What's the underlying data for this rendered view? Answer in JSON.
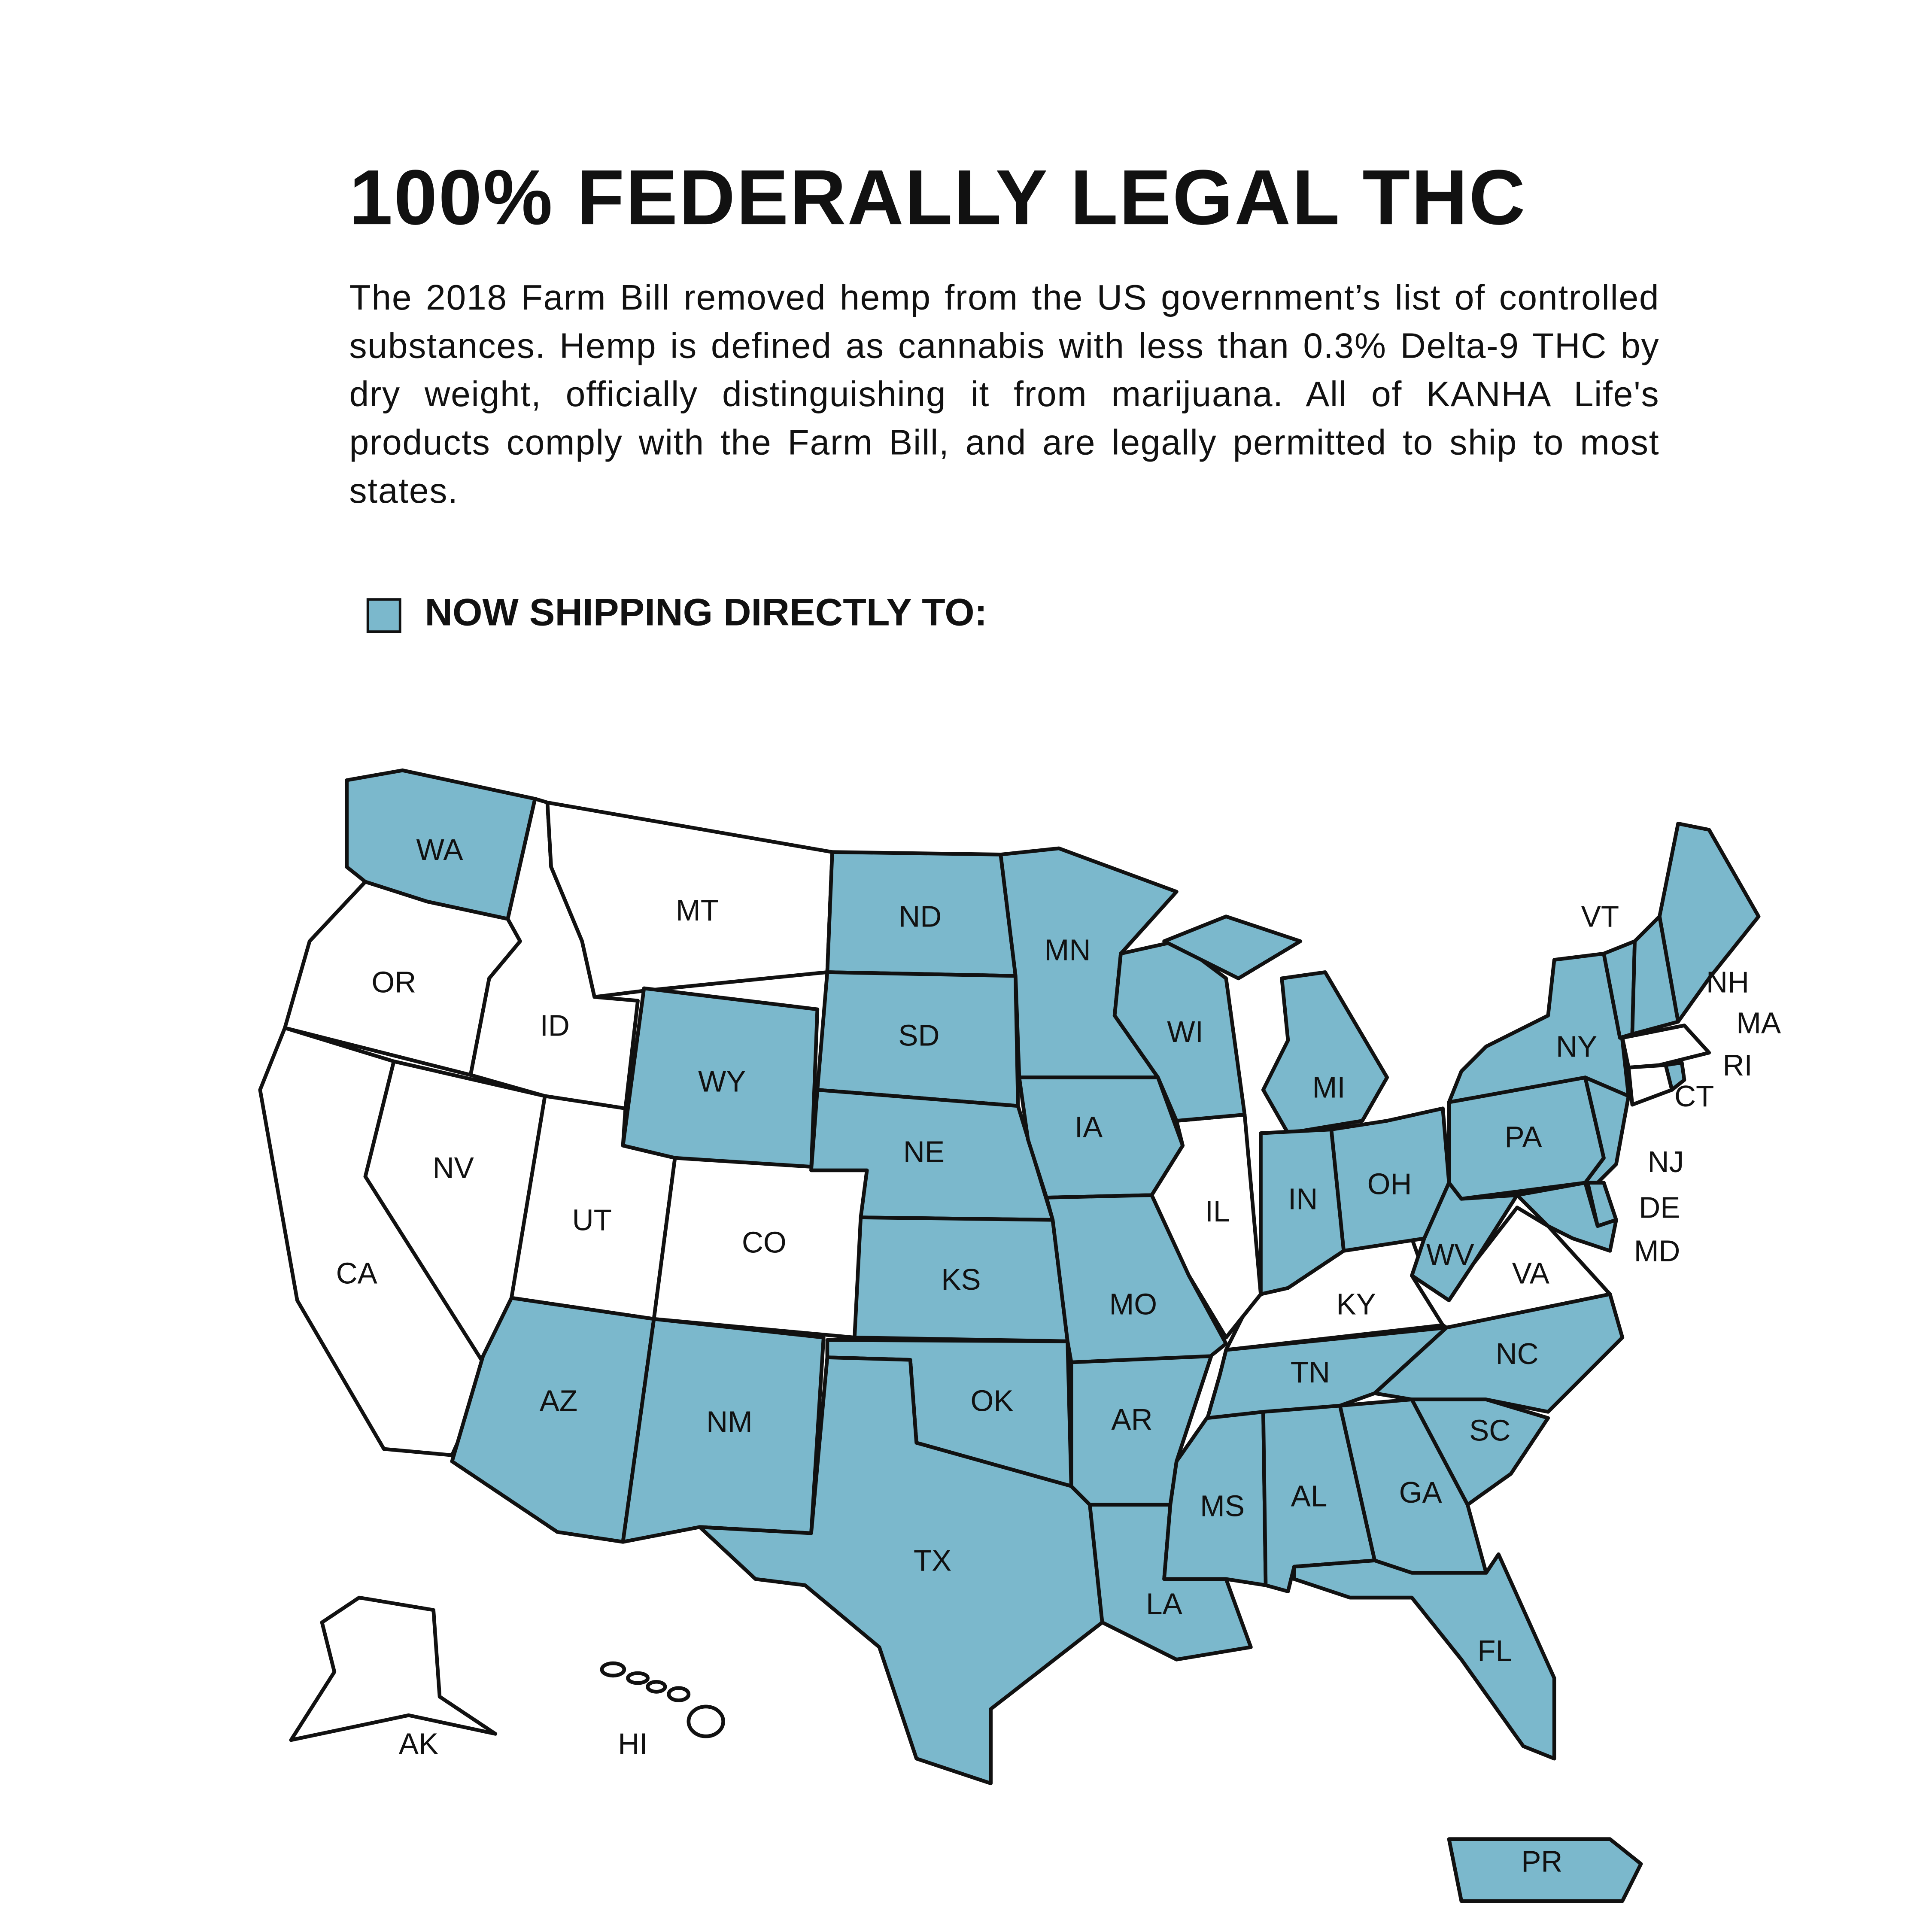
{
  "header": {
    "title": "100% FEDERALLY LEGAL THC",
    "description": "The 2018 Farm Bill removed hemp from the US government’s list of controlled substances. Hemp is defined as cannabis with less than 0.3% Delta-9 THC by dry weight, officially distinguishing it from marijuana. All of KANHA Life's products comply with the Farm Bill, and are legally permitted to ship to most states."
  },
  "legend": {
    "label": "NOW SHIPPING DIRECTLY TO:",
    "color": "#7bb8cc"
  },
  "map": {
    "shipped_color": "#7bb8cc",
    "other_color": "#ffffff",
    "states": [
      {
        "label": "WA",
        "shipped": true
      },
      {
        "label": "OR",
        "shipped": false
      },
      {
        "label": "CA",
        "shipped": false
      },
      {
        "label": "NV",
        "shipped": false
      },
      {
        "label": "ID",
        "shipped": false
      },
      {
        "label": "MT",
        "shipped": false
      },
      {
        "label": "WY",
        "shipped": true
      },
      {
        "label": "UT",
        "shipped": false
      },
      {
        "label": "CO",
        "shipped": false
      },
      {
        "label": "AZ",
        "shipped": true
      },
      {
        "label": "NM",
        "shipped": true
      },
      {
        "label": "ND",
        "shipped": true
      },
      {
        "label": "SD",
        "shipped": true
      },
      {
        "label": "NE",
        "shipped": true
      },
      {
        "label": "KS",
        "shipped": true
      },
      {
        "label": "OK",
        "shipped": true
      },
      {
        "label": "TX",
        "shipped": true
      },
      {
        "label": "MN",
        "shipped": true
      },
      {
        "label": "IA",
        "shipped": true
      },
      {
        "label": "MO",
        "shipped": true
      },
      {
        "label": "AR",
        "shipped": true
      },
      {
        "label": "LA",
        "shipped": true
      },
      {
        "label": "MS",
        "shipped": true
      },
      {
        "label": "AL",
        "shipped": true
      },
      {
        "label": "TN",
        "shipped": true
      },
      {
        "label": "KY",
        "shipped": false
      },
      {
        "label": "IL",
        "shipped": false
      },
      {
        "label": "WI",
        "shipped": true
      },
      {
        "label": "MI",
        "shipped": true
      },
      {
        "label": "IN",
        "shipped": true
      },
      {
        "label": "OH",
        "shipped": true
      },
      {
        "label": "WV",
        "shipped": true
      },
      {
        "label": "VA",
        "shipped": false
      },
      {
        "label": "NC",
        "shipped": true
      },
      {
        "label": "SC",
        "shipped": true
      },
      {
        "label": "GA",
        "shipped": true
      },
      {
        "label": "FL",
        "shipped": true
      },
      {
        "label": "PA",
        "shipped": true
      },
      {
        "label": "NY",
        "shipped": true
      },
      {
        "label": "NJ",
        "shipped": true
      },
      {
        "label": "DE",
        "shipped": true
      },
      {
        "label": "MD",
        "shipped": true
      },
      {
        "label": "VT",
        "shipped": true
      },
      {
        "label": "NH",
        "shipped": true
      },
      {
        "label": "MA",
        "shipped": false
      },
      {
        "label": "CT",
        "shipped": false
      },
      {
        "label": "RI",
        "shipped": true
      },
      {
        "label": "AK",
        "shipped": false
      },
      {
        "label": "HI",
        "shipped": false
      },
      {
        "label": "PR",
        "shipped": true
      }
    ]
  }
}
